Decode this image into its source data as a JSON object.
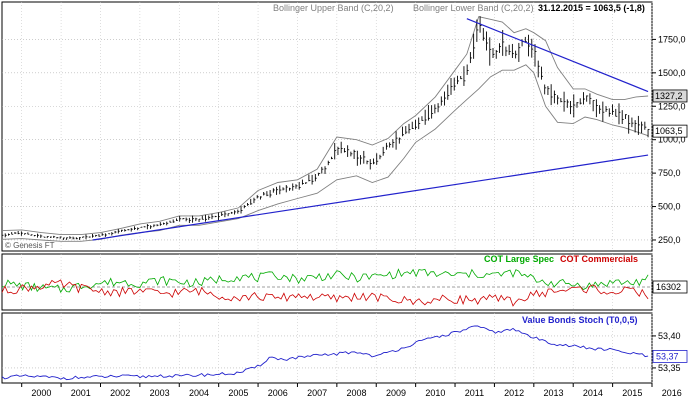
{
  "header": {
    "upper_band_label": "Bollinger Upper Band (C,20,2)",
    "lower_band_label": "Bollinger Lower Band (C,20,2)",
    "date_value": "31.12.2015 = 1063,5 (-1,8)"
  },
  "watermark": "© Genesis FT",
  "colors": {
    "price": "#000000",
    "bands": "#808080",
    "trendlines": "#2222cc",
    "large_spec": "#00aa00",
    "commercials": "#cc0000",
    "stoch": "#2222cc",
    "price_tag_bg": "#ffffff",
    "mid_tag_bg": "#d8d8d8"
  },
  "chart_data": [
    {
      "type": "line",
      "title": "",
      "y_ticks": [
        250.0,
        500.0,
        750.0,
        1000.0,
        1250.0,
        1500.0,
        1750.0
      ],
      "y_tick_labels": [
        "250,0",
        "500,0",
        "750,0",
        "1000,0",
        "1250,0",
        "1500,0",
        "1750,0"
      ],
      "ylim": [
        175,
        1940
      ],
      "xlim": [
        1999.5,
        2016.0
      ],
      "price_tag": "1063,5",
      "band_tag": "1327,2",
      "x": [
        1999.5,
        2000.0,
        2000.5,
        2001.0,
        2001.5,
        2002.0,
        2002.5,
        2003.0,
        2003.5,
        2004.0,
        2004.5,
        2005.0,
        2005.5,
        2006.0,
        2006.5,
        2007.0,
        2007.5,
        2008.0,
        2008.5,
        2008.9,
        2009.3,
        2009.7,
        2010.0,
        2010.5,
        2011.0,
        2011.3,
        2011.6,
        2011.9,
        2012.2,
        2012.5,
        2012.8,
        2013.0,
        2013.3,
        2013.6,
        2014.0,
        2014.3,
        2014.6,
        2015.0,
        2015.3,
        2015.6,
        2015.9
      ],
      "series": [
        {
          "name": "",
          "role": "close",
          "values": [
            290,
            300,
            275,
            265,
            268,
            285,
            315,
            345,
            360,
            405,
            400,
            430,
            460,
            570,
            620,
            650,
            720,
            920,
            890,
            820,
            950,
            1040,
            1110,
            1230,
            1420,
            1500,
            1860,
            1650,
            1690,
            1620,
            1750,
            1660,
            1380,
            1300,
            1250,
            1320,
            1240,
            1200,
            1170,
            1120,
            1064
          ]
        },
        {
          "name": "Bollinger Upper Band (C,20,2)",
          "role": "upper_band",
          "values": [
            320,
            325,
            305,
            290,
            290,
            305,
            335,
            370,
            390,
            430,
            430,
            455,
            490,
            620,
            680,
            700,
            780,
            1020,
            1000,
            960,
            1010,
            1120,
            1180,
            1320,
            1520,
            1640,
            1920,
            1900,
            1880,
            1800,
            1830,
            1800,
            1740,
            1540,
            1380,
            1380,
            1340,
            1300,
            1300,
            1320,
            1327
          ]
        },
        {
          "name": "Bollinger Lower Band (C,20,2)",
          "role": "lower_band",
          "values": [
            255,
            260,
            250,
            240,
            240,
            255,
            285,
            305,
            320,
            360,
            360,
            385,
            410,
            470,
            520,
            560,
            600,
            700,
            730,
            680,
            720,
            860,
            980,
            1080,
            1220,
            1300,
            1380,
            1470,
            1520,
            1520,
            1560,
            1500,
            1250,
            1130,
            1120,
            1170,
            1150,
            1110,
            1090,
            1060,
            1030
          ]
        }
      ],
      "trendlines": [
        {
          "x": [
            2001.8,
            2015.9
          ],
          "y": [
            250,
            885
          ]
        },
        {
          "x": [
            2011.3,
            2015.9
          ],
          "y": [
            1905,
            1360
          ]
        }
      ]
    },
    {
      "type": "line",
      "title": "",
      "legend": [
        "COT Large Spec",
        "COT Commercials"
      ],
      "tag": "16302",
      "xlim": [
        1999.5,
        2016.0
      ],
      "ylim": [
        -1.6,
        1.6
      ],
      "x": [
        1999.5,
        2000.0,
        2000.5,
        2001.0,
        2001.5,
        2002.0,
        2002.5,
        2003.0,
        2003.5,
        2004.0,
        2004.5,
        2005.0,
        2005.5,
        2006.0,
        2006.5,
        2007.0,
        2007.5,
        2008.0,
        2008.5,
        2009.0,
        2009.5,
        2010.0,
        2010.5,
        2011.0,
        2011.5,
        2012.0,
        2012.5,
        2013.0,
        2013.5,
        2014.0,
        2014.5,
        2015.0,
        2015.5,
        2015.9
      ],
      "series": [
        {
          "name": "COT Large Spec",
          "values": [
            0.3,
            0.1,
            -0.1,
            -0.2,
            0.1,
            0.3,
            0.4,
            0.3,
            0.5,
            0.4,
            0.3,
            0.6,
            0.8,
            0.7,
            0.9,
            0.6,
            0.8,
            0.9,
            0.7,
            0.8,
            1.0,
            1.1,
            1.0,
            0.9,
            1.0,
            0.9,
            1.1,
            0.6,
            0.3,
            0.2,
            0.1,
            0.4,
            0.3,
            0.6
          ]
        },
        {
          "name": "COT Commercials",
          "values": [
            -0.3,
            -0.1,
            0.1,
            0.2,
            -0.1,
            -0.3,
            -0.4,
            -0.3,
            -0.5,
            -0.4,
            -0.3,
            -0.6,
            -0.8,
            -0.7,
            -0.9,
            -0.6,
            -0.8,
            -0.9,
            -0.7,
            -0.8,
            -1.0,
            -1.1,
            -1.0,
            -0.9,
            -1.0,
            -0.9,
            -1.1,
            -0.6,
            -0.3,
            -0.2,
            -0.1,
            -0.4,
            -0.3,
            -0.6
          ]
        }
      ]
    },
    {
      "type": "line",
      "title": "",
      "legend": [
        "Value Bonds Stoch (T0,0,5)"
      ],
      "y_ticks": [
        53.35,
        53.4
      ],
      "y_tick_labels": [
        "53,35",
        "53,40"
      ],
      "tag": "53,37",
      "ylim": [
        53.328,
        53.428
      ],
      "xlim": [
        1999.5,
        2016.0
      ],
      "x": [
        1999.5,
        2000.0,
        2000.5,
        2001.0,
        2001.5,
        2002.0,
        2002.5,
        2003.0,
        2003.5,
        2004.0,
        2004.5,
        2005.0,
        2005.5,
        2006.0,
        2006.3,
        2006.6,
        2007.0,
        2007.5,
        2008.0,
        2008.5,
        2009.0,
        2009.5,
        2010.0,
        2010.5,
        2011.0,
        2011.5,
        2012.0,
        2012.5,
        2013.0,
        2013.5,
        2014.0,
        2014.5,
        2015.0,
        2015.3,
        2015.6,
        2015.9
      ],
      "series": [
        {
          "name": "Value Bonds Stoch (T0,0,5)",
          "values": [
            53.335,
            53.337,
            53.336,
            53.334,
            53.335,
            53.336,
            53.337,
            53.336,
            53.338,
            53.337,
            53.339,
            53.34,
            53.342,
            53.352,
            53.367,
            53.363,
            53.366,
            53.369,
            53.372,
            53.375,
            53.368,
            53.378,
            53.389,
            53.398,
            53.405,
            53.415,
            53.406,
            53.41,
            53.397,
            53.388,
            53.384,
            53.38,
            53.378,
            53.374,
            53.372,
            53.368
          ]
        }
      ]
    }
  ],
  "x_axis": {
    "year_labels": [
      "2000",
      "2001",
      "2002",
      "2003",
      "2004",
      "2005",
      "2006",
      "2007",
      "2008",
      "2009",
      "2010",
      "2011",
      "2012",
      "2013",
      "2014",
      "2015",
      "2016"
    ],
    "year_values": [
      2000,
      2001,
      2002,
      2003,
      2004,
      2005,
      2006,
      2007,
      2008,
      2009,
      2010,
      2011,
      2012,
      2013,
      2014,
      2015,
      2016
    ]
  }
}
